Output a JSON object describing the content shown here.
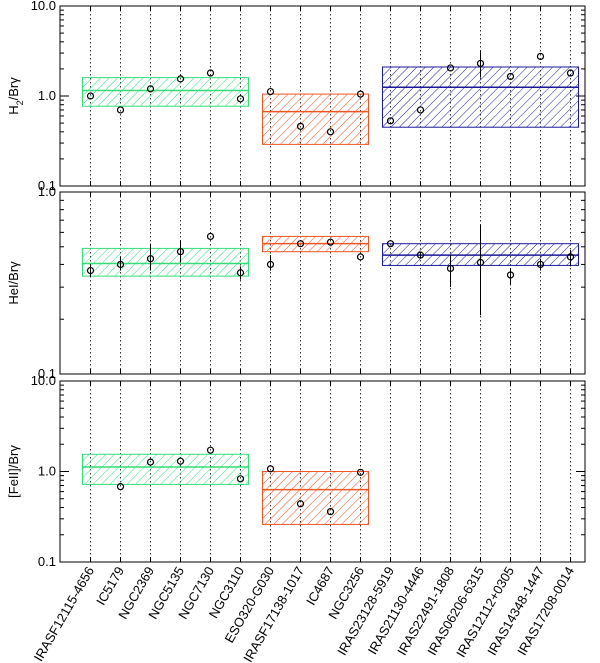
{
  "chart_data": {
    "type": "scatter",
    "categories": [
      "IRASF12115-4656",
      "IC5179",
      "NGC2369",
      "NGC5135",
      "NGC7130",
      "NGC3110",
      "ESO320-G030",
      "IRASF17138-1017",
      "IC4687",
      "NGC3256",
      "IRAS23128-5919",
      "IRAS21130-4446",
      "IRAS22491-1808",
      "IRAS06206-6315",
      "IRAS12112+0305",
      "IRAS14348-1447",
      "IRAS17208-0014"
    ],
    "groups": [
      {
        "name": "green",
        "color": "#33dd77",
        "first": 0,
        "last": 5
      },
      {
        "name": "orange",
        "color": "#ee5522",
        "first": 6,
        "last": 9
      },
      {
        "name": "blue",
        "color": "#1a1a99",
        "first": 10,
        "last": 16
      }
    ],
    "panels": [
      {
        "ylabel_base": "H",
        "ylabel_sub": "2",
        "ylabel_rest": "/Brγ",
        "yscale": "log",
        "ylim": [
          0.1,
          10.0
        ],
        "yticks": [
          {
            "v": 0.1,
            "t": "0.1"
          },
          {
            "v": 1.0,
            "t": "1.0"
          },
          {
            "v": 10.0,
            "t": "10.0"
          }
        ],
        "values": [
          1.0,
          0.7,
          1.2,
          1.55,
          1.8,
          0.93,
          1.12,
          0.46,
          0.4,
          1.05,
          0.53,
          0.7,
          2.05,
          2.3,
          1.65,
          2.75,
          1.8
        ],
        "err_hi": [
          null,
          null,
          null,
          null,
          null,
          null,
          null,
          null,
          null,
          null,
          null,
          null,
          null,
          3.2,
          null,
          null,
          null
        ],
        "err_lo": [
          null,
          null,
          null,
          null,
          null,
          null,
          null,
          null,
          null,
          null,
          null,
          null,
          null,
          1.6,
          null,
          null,
          null
        ],
        "bands": [
          {
            "group": "green",
            "mean": 1.15,
            "low": 0.77,
            "high": 1.6
          },
          {
            "group": "orange",
            "mean": 0.67,
            "low": 0.29,
            "high": 1.05
          },
          {
            "group": "blue",
            "mean": 1.25,
            "low": 0.45,
            "high": 2.1
          }
        ]
      },
      {
        "ylabel_base": "HeI/Brγ",
        "ylabel_sub": "",
        "ylabel_rest": "",
        "yscale": "log",
        "ylim": [
          0.1,
          1.0
        ],
        "yticks": [
          {
            "v": 0.1,
            "t": "0.1"
          },
          {
            "v": 1.0,
            "t": "1.0"
          }
        ],
        "values": [
          0.37,
          0.4,
          0.43,
          0.47,
          0.57,
          0.36,
          0.4,
          0.52,
          0.53,
          0.44,
          0.52,
          0.45,
          0.38,
          0.41,
          0.35,
          0.4,
          0.44
        ],
        "err_hi": [
          0.4,
          0.44,
          0.52,
          0.54,
          null,
          0.39,
          0.45,
          null,
          null,
          null,
          null,
          0.46,
          0.45,
          0.66,
          0.38,
          0.43,
          0.48
        ],
        "err_lo": [
          0.34,
          0.37,
          0.37,
          0.41,
          null,
          0.33,
          0.37,
          null,
          null,
          null,
          null,
          0.43,
          0.3,
          0.21,
          0.31,
          0.37,
          0.39
        ],
        "bands": [
          {
            "group": "green",
            "mean": 0.405,
            "low": 0.345,
            "high": 0.49
          },
          {
            "group": "orange",
            "mean": 0.52,
            "low": 0.47,
            "high": 0.57
          },
          {
            "group": "blue",
            "mean": 0.45,
            "low": 0.395,
            "high": 0.52
          }
        ]
      },
      {
        "ylabel_base": "[FeII]/Brγ",
        "ylabel_sub": "",
        "ylabel_rest": "",
        "yscale": "log",
        "ylim": [
          0.1,
          10.0
        ],
        "yticks": [
          {
            "v": 0.1,
            "t": "0.1"
          },
          {
            "v": 1.0,
            "t": "1.0"
          },
          {
            "v": 10.0,
            "t": "10.0"
          }
        ],
        "values": [
          null,
          0.68,
          1.27,
          1.3,
          1.72,
          0.83,
          1.07,
          0.44,
          0.36,
          0.98,
          null,
          null,
          null,
          null,
          null,
          null,
          null
        ],
        "err_hi": [
          null,
          null,
          null,
          null,
          null,
          null,
          null,
          null,
          null,
          null,
          null,
          null,
          null,
          null,
          null,
          null,
          null
        ],
        "err_lo": [
          null,
          null,
          null,
          null,
          null,
          null,
          null,
          null,
          null,
          null,
          null,
          null,
          null,
          null,
          null,
          null,
          null
        ],
        "bands": [
          {
            "group": "green",
            "mean": 1.12,
            "low": 0.72,
            "high": 1.55
          },
          {
            "group": "orange",
            "mean": 0.63,
            "low": 0.26,
            "high": 1.0
          }
        ]
      }
    ]
  }
}
